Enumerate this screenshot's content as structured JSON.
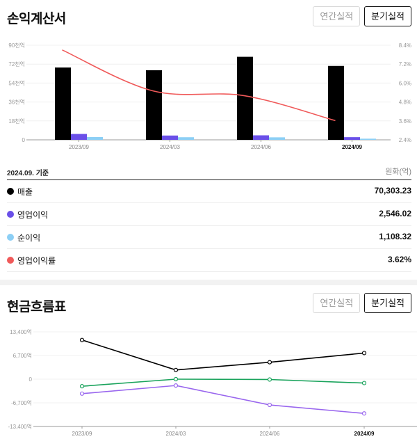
{
  "income": {
    "title": "손익계산서",
    "tabs": [
      {
        "label": "연간실적",
        "active": false
      },
      {
        "label": "분기실적",
        "active": true
      }
    ],
    "basis": "2024.09. 기준",
    "unit": "원화(억)",
    "rows": [
      {
        "label": "매출",
        "value": "70,303.23",
        "color": "#000000"
      },
      {
        "label": "영업이익",
        "value": "2,546.02",
        "color": "#6a4fe8"
      },
      {
        "label": "순이익",
        "value": "1,108.32",
        "color": "#8ccff5"
      },
      {
        "label": "영업이익률",
        "value": "3.62%",
        "color": "#f05a5a"
      }
    ]
  },
  "cash": {
    "title": "현금흐름표",
    "tabs": [
      {
        "label": "연간실적",
        "active": false
      },
      {
        "label": "분기실적",
        "active": true
      }
    ]
  },
  "chart_data": [
    {
      "type": "bar",
      "categories": [
        "2023/09",
        "2024/03",
        "2024/06",
        "2024/09"
      ],
      "highlight_category": "2024/09",
      "y_ticks": [
        "0",
        "18천억",
        "36천억",
        "54천억",
        "72천억",
        "90천억"
      ],
      "ylim": [
        0,
        90000
      ],
      "y2_ticks": [
        "2.4%",
        "3.6%",
        "4.8%",
        "6.0%",
        "7.2%",
        "8.4%"
      ],
      "y2lim": [
        2.4,
        8.4
      ],
      "series": [
        {
          "name": "매출",
          "values": [
            68800,
            66200,
            79000,
            70303
          ],
          "color": "#000000",
          "kind": "bar"
        },
        {
          "name": "영업이익",
          "values": [
            5600,
            4100,
            4300,
            2546
          ],
          "color": "#6a4fe8",
          "kind": "bar"
        },
        {
          "name": "순이익",
          "values": [
            2700,
            2500,
            2400,
            1108
          ],
          "color": "#8ccff5",
          "kind": "bar"
        },
        {
          "name": "영업이익률",
          "values": [
            8.1,
            5.5,
            5.2,
            3.62
          ],
          "color": "#f05a5a",
          "kind": "line",
          "axis": "right"
        }
      ]
    },
    {
      "type": "line",
      "categories": [
        "2023/09",
        "2024/03",
        "2024/06",
        "2024/09"
      ],
      "highlight_category": "2024/09",
      "y_ticks": [
        "13,400억",
        "6,700억",
        "0",
        "-6,700억",
        "-13,400억"
      ],
      "y_tick_values": [
        13400,
        6700,
        0,
        -6700,
        -13400
      ],
      "ylim": [
        -13400,
        13400
      ],
      "series": [
        {
          "values": [
            11100,
            2600,
            4800,
            7400
          ],
          "color": "#000000"
        },
        {
          "values": [
            -2000,
            0,
            -100,
            -1100
          ],
          "color": "#1aa35c"
        },
        {
          "values": [
            -4100,
            -1800,
            -7300,
            -9700
          ],
          "color": "#9966ee"
        }
      ]
    }
  ]
}
